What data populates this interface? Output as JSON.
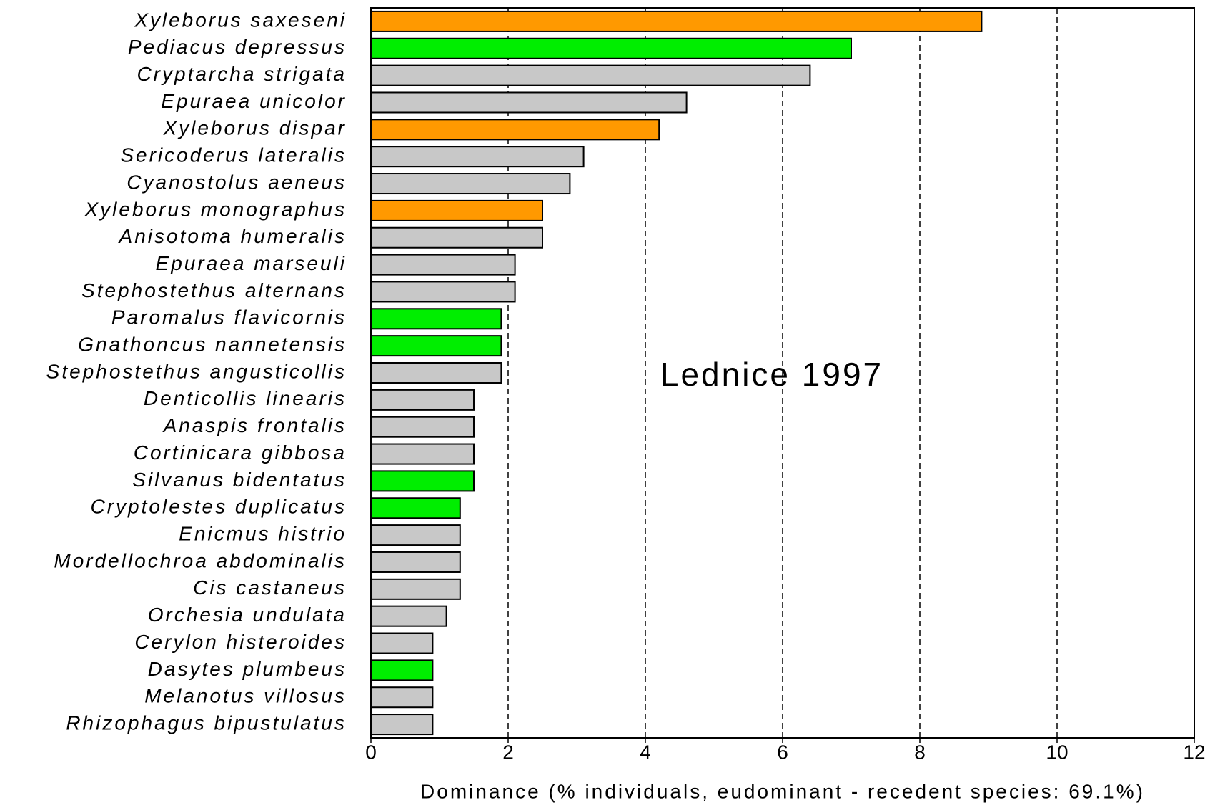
{
  "chart_data": {
    "type": "bar",
    "orientation": "horizontal",
    "annotation": "Lednice 1997",
    "x_label": "Dominance (% individuals, eudominant - recedent species: 69.1%)",
    "categories": [
      "Xyleborus saxeseni",
      "Pediacus depressus",
      "Cryptarcha strigata",
      "Epuraea unicolor",
      "Xyleborus dispar",
      "Sericoderus lateralis",
      "Cyanostolus aeneus",
      "Xyleborus monographus",
      "Anisotoma humeralis",
      "Epuraea marseuli",
      "Stephostethus alternans",
      "Paromalus flavicornis",
      "Gnathoncus nannetensis",
      "Stephostethus angusticollis",
      "Denticollis linearis",
      "Anaspis frontalis",
      "Cortinicara gibbosa",
      "Silvanus bidentatus",
      "Cryptolestes duplicatus",
      "Enicmus histrio",
      "Mordellochroa abdominalis",
      "Cis castaneus",
      "Orchesia undulata",
      "Cerylon histeroides",
      "Dasytes plumbeus",
      "Melanotus villosus",
      "Rhizophagus bipustulatus"
    ],
    "values": [
      8.9,
      7.0,
      6.4,
      4.6,
      4.2,
      3.1,
      2.9,
      2.5,
      2.5,
      2.1,
      2.1,
      1.9,
      1.9,
      1.9,
      1.5,
      1.5,
      1.5,
      1.5,
      1.3,
      1.3,
      1.3,
      1.3,
      1.1,
      0.9,
      0.9,
      0.9,
      0.9
    ],
    "colors": [
      "#ff9900",
      "#00ee00",
      "#c8c8c8",
      "#c8c8c8",
      "#ff9900",
      "#c8c8c8",
      "#c8c8c8",
      "#ff9900",
      "#c8c8c8",
      "#c8c8c8",
      "#c8c8c8",
      "#00ee00",
      "#00ee00",
      "#c8c8c8",
      "#c8c8c8",
      "#c8c8c8",
      "#c8c8c8",
      "#00ee00",
      "#00ee00",
      "#c8c8c8",
      "#c8c8c8",
      "#c8c8c8",
      "#c8c8c8",
      "#c8c8c8",
      "#00ee00",
      "#c8c8c8",
      "#c8c8c8"
    ],
    "xlim": [
      0,
      12
    ],
    "xticks": [
      0,
      2,
      4,
      6,
      8,
      10,
      12
    ],
    "grid": true
  }
}
